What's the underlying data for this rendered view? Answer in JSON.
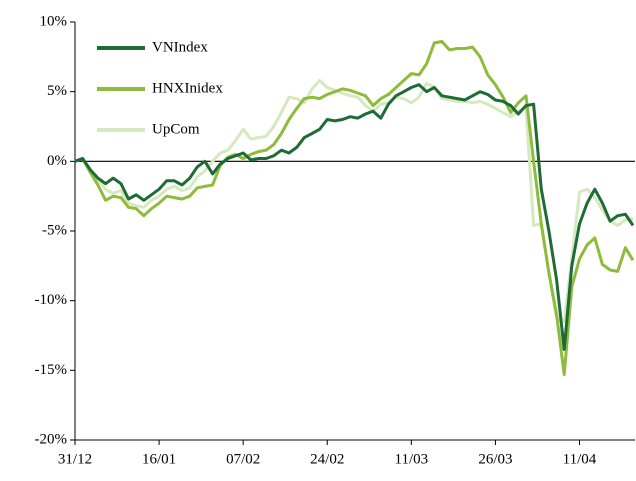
{
  "chart_data": {
    "type": "line",
    "categories": [
      "31/12",
      null,
      null,
      null,
      null,
      null,
      null,
      null,
      null,
      null,
      null,
      "16/01",
      null,
      null,
      null,
      null,
      null,
      null,
      null,
      null,
      null,
      null,
      "07/02",
      null,
      null,
      null,
      null,
      null,
      null,
      null,
      null,
      null,
      null,
      "24/02",
      null,
      null,
      null,
      null,
      null,
      null,
      null,
      null,
      null,
      null,
      "11/03",
      null,
      null,
      null,
      null,
      null,
      null,
      null,
      null,
      null,
      null,
      "26/03",
      null,
      null,
      null,
      null,
      null,
      null,
      null,
      null,
      null,
      null,
      "11/04",
      null,
      null,
      null,
      null,
      null,
      null,
      null
    ],
    "series": [
      {
        "name": "VNIndex",
        "color": "#1e6b35",
        "values": [
          0,
          0.2,
          -0.6,
          -1.2,
          -1.6,
          -1.2,
          -1.6,
          -2.7,
          -2.4,
          -2.8,
          -2.4,
          -2,
          -1.4,
          -1.4,
          -1.7,
          -1.2,
          -0.4,
          0,
          -0.9,
          -0.2,
          0.2,
          0.4,
          0.6,
          0.1,
          0.2,
          0.2,
          0.4,
          0.8,
          0.6,
          1,
          1.7,
          2,
          2.3,
          3,
          2.9,
          3,
          3.2,
          3.1,
          3.4,
          3.6,
          3.1,
          4.1,
          4.7,
          5,
          5.3,
          5.5,
          5,
          5.3,
          4.7,
          4.6,
          4.5,
          4.4,
          4.7,
          5,
          4.8,
          4.4,
          4.3,
          4,
          3.4,
          4,
          4.1,
          -2,
          -5,
          -8.5,
          -13.5,
          -7.5,
          -4.5,
          -3,
          -2,
          -3,
          -4.3,
          -3.9,
          -3.8,
          -4.6
        ]
      },
      {
        "name": "HNXInidex",
        "color": "#8dbb3a",
        "values": [
          0,
          0.2,
          -0.8,
          -1.7,
          -2.8,
          -2.5,
          -2.6,
          -3.3,
          -3.4,
          -3.9,
          -3.4,
          -3,
          -2.5,
          -2.6,
          -2.7,
          -2.5,
          -1.9,
          -1.8,
          -1.7,
          -0.3,
          0.3,
          0.5,
          0.2,
          0.5,
          0.7,
          0.8,
          1.2,
          2,
          3,
          3.8,
          4.5,
          4.6,
          4.5,
          4.8,
          5,
          5.2,
          5.1,
          4.9,
          4.7,
          4,
          4.5,
          4.8,
          5.3,
          5.8,
          6.3,
          6.2,
          7,
          8.5,
          8.6,
          8,
          8.1,
          8.1,
          8.2,
          7.5,
          6.2,
          5.5,
          4.6,
          3.5,
          4.2,
          4.7,
          0,
          -4.5,
          -8,
          -11,
          -15.3,
          -9,
          -7,
          -6,
          -5.5,
          -7.4,
          -7.8,
          -7.9,
          -6.2,
          -7.1
        ]
      },
      {
        "name": "UpCom",
        "color": "#d6e8be",
        "values": [
          0,
          0.2,
          -0.7,
          -1.3,
          -2,
          -2.3,
          -2.1,
          -3,
          -3.2,
          -3.3,
          -2.8,
          -2.5,
          -2,
          -1.8,
          -2.1,
          -1.9,
          -1.1,
          -0.7,
          0,
          0.6,
          0.8,
          1.5,
          2.3,
          1.6,
          1.7,
          1.8,
          2.5,
          3.5,
          4.6,
          4.5,
          4.2,
          5.2,
          5.8,
          5.3,
          5.1,
          4.9,
          4.7,
          4.6,
          4,
          3.6,
          4.1,
          4.2,
          4.6,
          4.5,
          4.2,
          4.6,
          5.6,
          5.3,
          4.5,
          4.4,
          4.3,
          4.3,
          4.2,
          4.3,
          4.1,
          3.8,
          3.5,
          3.2,
          3.6,
          3.9,
          -4.6,
          -4.5,
          -8,
          -11.3,
          -11.5,
          -7,
          -2.2,
          -2,
          -2.6,
          -3.5,
          -4.3,
          -4.6,
          -4.2,
          -4.1
        ]
      }
    ],
    "ylim": [
      -20,
      10
    ],
    "yticks": [
      {
        "value": 10,
        "label": "10%"
      },
      {
        "value": 5,
        "label": "5%"
      },
      {
        "value": 0,
        "label": "0%"
      },
      {
        "value": -5,
        "label": "-5%"
      },
      {
        "value": -10,
        "label": "-10%"
      },
      {
        "value": -15,
        "label": "-15%"
      },
      {
        "value": -20,
        "label": "-20%"
      }
    ],
    "legend": "upper left"
  }
}
